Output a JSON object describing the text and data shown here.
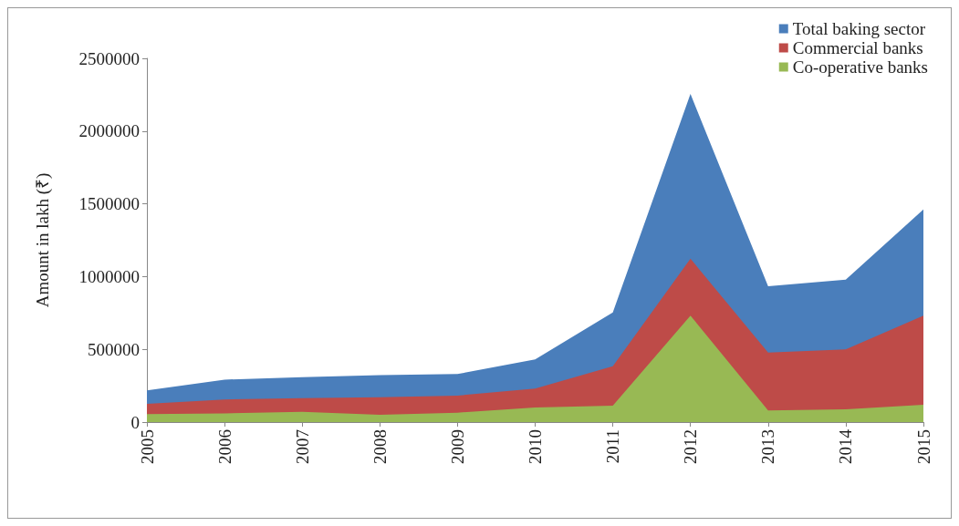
{
  "chart_data": {
    "type": "area",
    "ylabel": "Amount in lakh (₹)",
    "categories": [
      "2005",
      "2006",
      "2007",
      "2008",
      "2009",
      "2010",
      "2011",
      "2012",
      "2013",
      "2014",
      "2015"
    ],
    "series": [
      {
        "name": "Total baking sector",
        "color": "#4a7ebb",
        "values": [
          217000,
          292000,
          309000,
          323000,
          330000,
          430000,
          753000,
          2255000,
          933000,
          979000,
          1461000
        ]
      },
      {
        "name": "Commercial banks",
        "color": "#be4b48",
        "values": [
          125000,
          155000,
          165000,
          171000,
          182000,
          230000,
          383000,
          1123000,
          478000,
          499000,
          732000
        ]
      },
      {
        "name": "Co-operative banks",
        "color": "#98b954",
        "values": [
          55000,
          60000,
          70000,
          50000,
          65000,
          100000,
          112000,
          732000,
          80000,
          87000,
          119000
        ]
      }
    ],
    "ylim": [
      0,
      2500000
    ],
    "yticks": [
      0,
      500000,
      1000000,
      1500000,
      2000000,
      2500000
    ],
    "grid": false,
    "legend": "top right"
  }
}
